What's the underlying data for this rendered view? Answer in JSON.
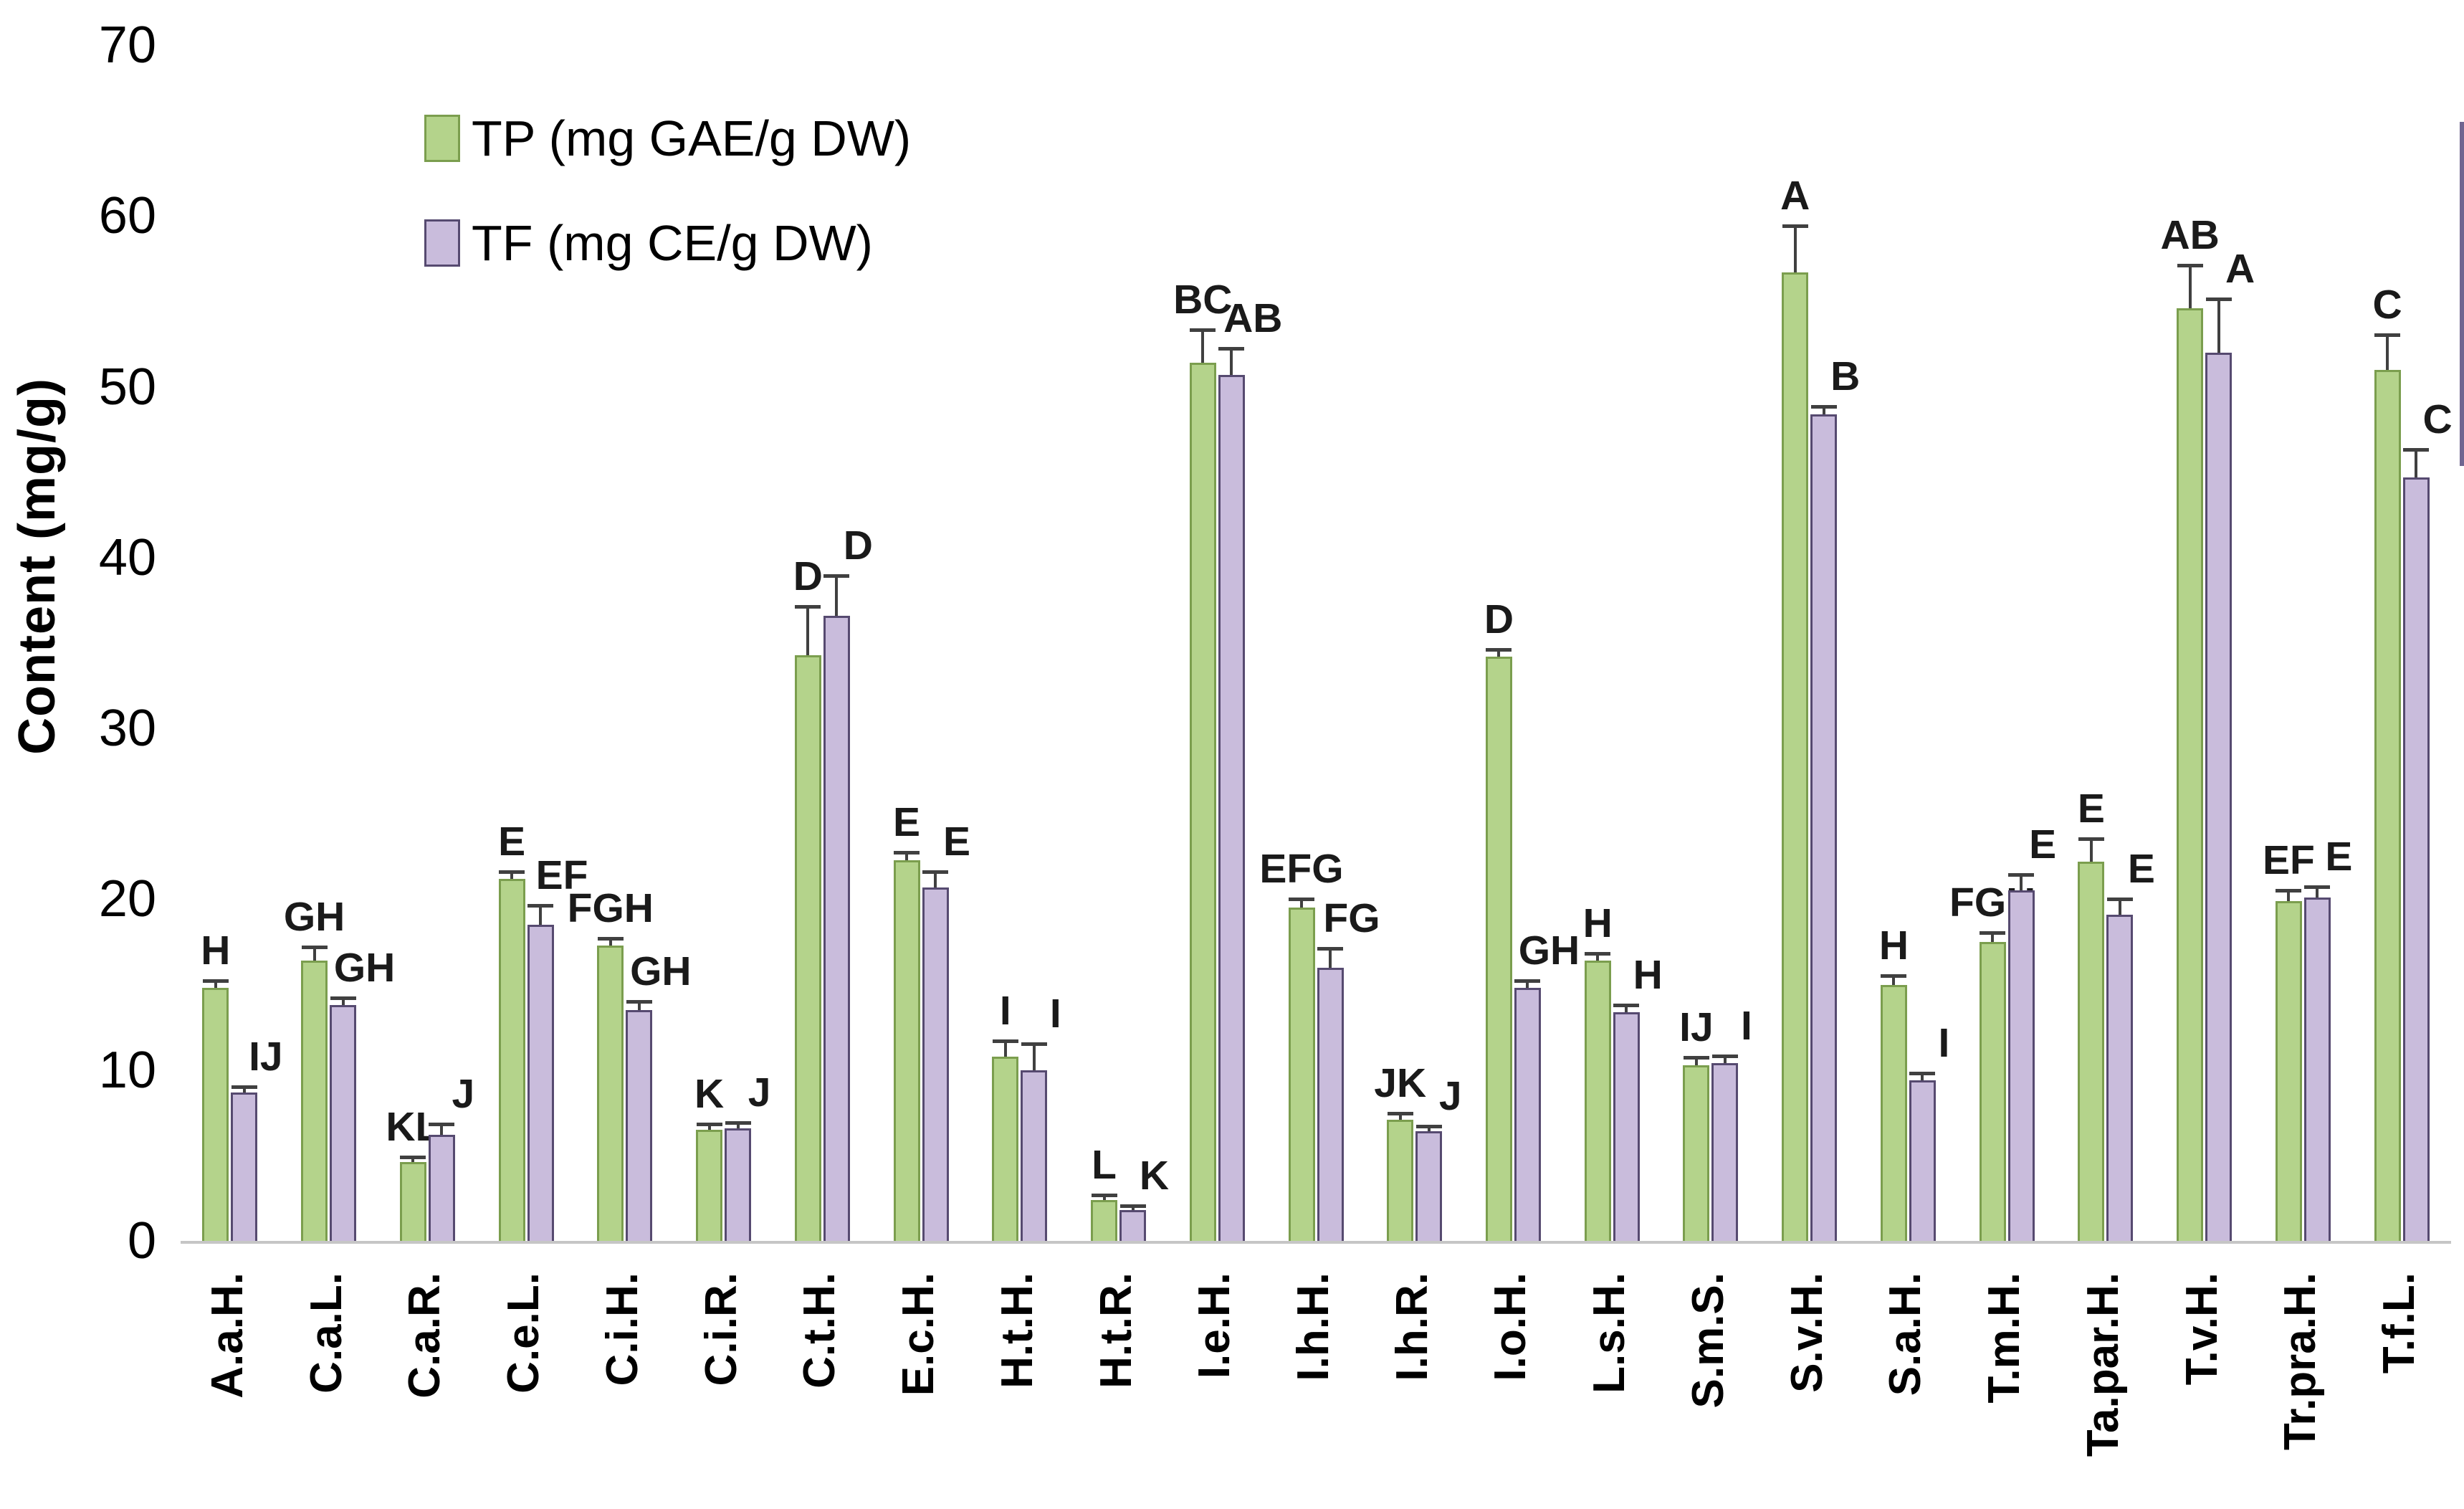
{
  "figure": {
    "background": "#ffffff"
  },
  "chart_data": {
    "type": "bar",
    "title": "",
    "xlabel": "",
    "ylabel": "Content (mg/g)",
    "ylim": [
      0,
      70
    ],
    "yticks": [
      0,
      10,
      20,
      30,
      40,
      50,
      60,
      70
    ],
    "grid": false,
    "legend_position": "top-left-inside",
    "categories": [
      "A.a.H.",
      "C.a.L.",
      "C.a.R.",
      "C.e.L.",
      "C.i.H.",
      "C.i.R.",
      "C.t.H.",
      "E.c.H.",
      "H.t.H.",
      "H.t.R.",
      "I.e.H.",
      "I.h.H.",
      "I.h.R.",
      "I.o.H.",
      "L.s.H.",
      "S.m.S.",
      "S.v.H.",
      "S.a.H.",
      "T.m.H.",
      "Ta.par.H.",
      "T.v.H.",
      "Tr.pra.H.",
      "T.f.L."
    ],
    "series": [
      {
        "name": "TP (mg GAE/g DW)",
        "color": "#b4d38b",
        "border": "#7b9e4e",
        "values": [
          14.8,
          16.4,
          4.6,
          21.2,
          17.3,
          6.5,
          34.3,
          22.3,
          10.8,
          2.4,
          51.4,
          19.5,
          7.1,
          34.2,
          16.4,
          10.3,
          56.7,
          15.0,
          17.5,
          22.2,
          54.6,
          19.9,
          51.0
        ],
        "errors": [
          0.3,
          0.7,
          0.2,
          0.3,
          0.3,
          0.2,
          2.7,
          0.3,
          0.8,
          0.15,
          1.8,
          0.4,
          0.25,
          0.3,
          0.3,
          0.3,
          2.6,
          0.4,
          0.4,
          1.2,
          2.4,
          0.5,
          1.9
        ],
        "letters": [
          "H",
          "GH",
          "KL",
          "E",
          "FGH",
          "K",
          "D",
          "E",
          "I",
          "L",
          "BC",
          "EFG",
          "JK",
          "D",
          "H",
          "IJ",
          "A",
          "H",
          "FGH",
          "E",
          "AB",
          "EF",
          "C"
        ]
      },
      {
        "name": "TF (mg CE/g DW)",
        "color": "#c9bcdc",
        "border": "#564a70",
        "values": [
          8.7,
          13.8,
          6.2,
          18.5,
          13.5,
          6.6,
          36.6,
          20.7,
          10.0,
          1.8,
          50.7,
          16.0,
          6.4,
          14.8,
          13.4,
          10.4,
          48.4,
          9.4,
          20.5,
          19.1,
          52.0,
          20.1,
          44.7
        ],
        "errors": [
          0.2,
          0.3,
          0.5,
          1.0,
          0.4,
          0.2,
          2.2,
          0.8,
          1.4,
          0.15,
          1.4,
          1.0,
          0.2,
          0.3,
          0.3,
          0.3,
          0.3,
          0.3,
          0.8,
          0.8,
          3.0,
          0.5,
          1.5
        ],
        "letters": [
          "IJ",
          "GH",
          "J",
          "EF",
          "GH",
          "J",
          "D",
          "E",
          "I",
          "K",
          "AB",
          "FG",
          "J",
          "GH",
          "H",
          "I",
          "B",
          "I",
          "E",
          "E",
          "A",
          "E",
          "C"
        ]
      }
    ],
    "error_bar_color": "#404040",
    "axis_line_color": "#c6c6c6",
    "text_color": "#000000"
  }
}
